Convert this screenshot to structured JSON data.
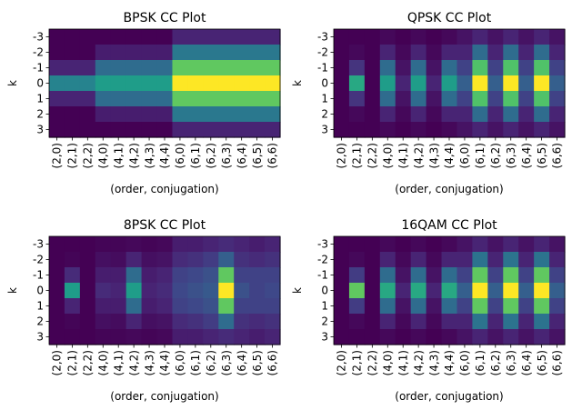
{
  "figure": {
    "colormap": [
      "#440154",
      "#482878",
      "#3e4989",
      "#31688e",
      "#26828e",
      "#1f9e89",
      "#35b779",
      "#6ece58",
      "#b5de2b",
      "#fde725"
    ]
  },
  "chart_data": [
    {
      "type": "heatmap",
      "title": "BPSK CC Plot",
      "xlabel": "(order, conjugation)",
      "ylabel": "k",
      "x": [
        "(2,0)",
        "(2,1)",
        "(2,2)",
        "(4,0)",
        "(4,1)",
        "(4,2)",
        "(4,3)",
        "(4,4)",
        "(6,0)",
        "(6,1)",
        "(6,2)",
        "(6,3)",
        "(6,4)",
        "(6,5)",
        "(6,6)"
      ],
      "y": [
        "-3",
        "-2",
        "-1",
        "0",
        "1",
        "2",
        "3"
      ],
      "grid": false,
      "values": [
        [
          0.0,
          0.0,
          0.0,
          0.0,
          0.0,
          0.0,
          0.0,
          0.0,
          0.1,
          0.1,
          0.1,
          0.1,
          0.1,
          0.1,
          0.1
        ],
        [
          0.0,
          0.0,
          0.0,
          0.08,
          0.08,
          0.08,
          0.08,
          0.08,
          0.4,
          0.4,
          0.4,
          0.4,
          0.4,
          0.4,
          0.4
        ],
        [
          0.1,
          0.1,
          0.1,
          0.35,
          0.35,
          0.35,
          0.35,
          0.35,
          0.75,
          0.75,
          0.75,
          0.75,
          0.75,
          0.75,
          0.75
        ],
        [
          0.45,
          0.45,
          0.45,
          0.55,
          0.55,
          0.55,
          0.55,
          0.55,
          1.0,
          1.0,
          1.0,
          1.0,
          1.0,
          1.0,
          1.0
        ],
        [
          0.1,
          0.1,
          0.1,
          0.35,
          0.35,
          0.35,
          0.35,
          0.35,
          0.75,
          0.75,
          0.75,
          0.75,
          0.75,
          0.75,
          0.75
        ],
        [
          0.0,
          0.0,
          0.0,
          0.08,
          0.08,
          0.08,
          0.08,
          0.08,
          0.4,
          0.4,
          0.4,
          0.4,
          0.4,
          0.4,
          0.4
        ],
        [
          0.0,
          0.0,
          0.0,
          0.0,
          0.0,
          0.0,
          0.0,
          0.0,
          0.1,
          0.1,
          0.1,
          0.1,
          0.1,
          0.1,
          0.1
        ]
      ]
    },
    {
      "type": "heatmap",
      "title": "QPSK CC Plot",
      "xlabel": "(order, conjugation)",
      "ylabel": "k",
      "x": [
        "(2,0)",
        "(2,1)",
        "(2,2)",
        "(4,0)",
        "(4,1)",
        "(4,2)",
        "(4,3)",
        "(4,4)",
        "(6,0)",
        "(6,1)",
        "(6,2)",
        "(6,3)",
        "(6,4)",
        "(6,5)",
        "(6,6)"
      ],
      "y": [
        "-3",
        "-2",
        "-1",
        "0",
        "1",
        "2",
        "3"
      ],
      "grid": false,
      "values": [
        [
          0.0,
          0.0,
          0.0,
          0.02,
          0.0,
          0.02,
          0.0,
          0.02,
          0.05,
          0.1,
          0.05,
          0.1,
          0.05,
          0.1,
          0.05
        ],
        [
          0.0,
          0.02,
          0.0,
          0.1,
          0.02,
          0.1,
          0.02,
          0.1,
          0.1,
          0.35,
          0.1,
          0.35,
          0.1,
          0.35,
          0.1
        ],
        [
          0.0,
          0.15,
          0.0,
          0.35,
          0.05,
          0.35,
          0.05,
          0.35,
          0.2,
          0.72,
          0.2,
          0.72,
          0.2,
          0.72,
          0.2
        ],
        [
          0.0,
          0.6,
          0.0,
          0.55,
          0.1,
          0.55,
          0.1,
          0.55,
          0.3,
          1.0,
          0.3,
          1.0,
          0.3,
          1.0,
          0.3
        ],
        [
          0.0,
          0.15,
          0.0,
          0.35,
          0.05,
          0.35,
          0.05,
          0.35,
          0.2,
          0.72,
          0.2,
          0.72,
          0.2,
          0.72,
          0.2
        ],
        [
          0.0,
          0.02,
          0.0,
          0.1,
          0.02,
          0.1,
          0.02,
          0.1,
          0.1,
          0.35,
          0.1,
          0.35,
          0.1,
          0.35,
          0.1
        ],
        [
          0.0,
          0.0,
          0.0,
          0.02,
          0.0,
          0.02,
          0.0,
          0.02,
          0.05,
          0.1,
          0.05,
          0.1,
          0.05,
          0.1,
          0.05
        ]
      ]
    },
    {
      "type": "heatmap",
      "title": "8PSK CC Plot",
      "xlabel": "(order, conjugation)",
      "ylabel": "k",
      "x": [
        "(2,0)",
        "(2,1)",
        "(2,2)",
        "(4,0)",
        "(4,1)",
        "(4,2)",
        "(4,3)",
        "(4,4)",
        "(6,0)",
        "(6,1)",
        "(6,2)",
        "(6,3)",
        "(6,4)",
        "(6,5)",
        "(6,6)"
      ],
      "y": [
        "-3",
        "-2",
        "-1",
        "0",
        "1",
        "2",
        "3"
      ],
      "grid": false,
      "values": [
        [
          0.0,
          0.0,
          0.0,
          0.01,
          0.01,
          0.02,
          0.01,
          0.02,
          0.08,
          0.08,
          0.1,
          0.12,
          0.1,
          0.08,
          0.1
        ],
        [
          0.0,
          0.01,
          0.0,
          0.04,
          0.03,
          0.1,
          0.04,
          0.05,
          0.12,
          0.14,
          0.18,
          0.3,
          0.14,
          0.12,
          0.14
        ],
        [
          0.0,
          0.12,
          0.0,
          0.08,
          0.08,
          0.35,
          0.08,
          0.1,
          0.2,
          0.22,
          0.25,
          0.75,
          0.2,
          0.2,
          0.2
        ],
        [
          0.0,
          0.55,
          0.0,
          0.12,
          0.1,
          0.55,
          0.1,
          0.12,
          0.22,
          0.25,
          0.28,
          1.0,
          0.25,
          0.2,
          0.22
        ],
        [
          0.0,
          0.1,
          0.0,
          0.08,
          0.08,
          0.35,
          0.08,
          0.1,
          0.2,
          0.22,
          0.25,
          0.75,
          0.2,
          0.2,
          0.2
        ],
        [
          0.0,
          0.01,
          0.0,
          0.04,
          0.03,
          0.1,
          0.04,
          0.05,
          0.12,
          0.14,
          0.18,
          0.35,
          0.14,
          0.12,
          0.14
        ],
        [
          0.0,
          0.0,
          0.0,
          0.01,
          0.01,
          0.02,
          0.01,
          0.02,
          0.08,
          0.08,
          0.1,
          0.12,
          0.1,
          0.08,
          0.1
        ]
      ]
    },
    {
      "type": "heatmap",
      "title": "16QAM CC Plot",
      "xlabel": "(order, conjugation)",
      "ylabel": "k",
      "x": [
        "(2,0)",
        "(2,1)",
        "(2,2)",
        "(4,0)",
        "(4,1)",
        "(4,2)",
        "(4,3)",
        "(4,4)",
        "(6,0)",
        "(6,1)",
        "(6,2)",
        "(6,3)",
        "(6,4)",
        "(6,5)",
        "(6,6)"
      ],
      "y": [
        "-3",
        "-2",
        "-1",
        "0",
        "1",
        "2",
        "3"
      ],
      "grid": false,
      "values": [
        [
          0.0,
          0.0,
          0.0,
          0.02,
          0.0,
          0.02,
          0.0,
          0.02,
          0.05,
          0.1,
          0.05,
          0.1,
          0.05,
          0.1,
          0.05
        ],
        [
          0.0,
          0.02,
          0.0,
          0.1,
          0.02,
          0.1,
          0.02,
          0.1,
          0.1,
          0.38,
          0.1,
          0.38,
          0.1,
          0.38,
          0.1
        ],
        [
          0.0,
          0.18,
          0.0,
          0.35,
          0.05,
          0.35,
          0.05,
          0.35,
          0.2,
          0.75,
          0.2,
          0.75,
          0.2,
          0.75,
          0.2
        ],
        [
          0.0,
          0.75,
          0.0,
          0.6,
          0.1,
          0.6,
          0.1,
          0.6,
          0.3,
          1.0,
          0.3,
          1.0,
          0.3,
          1.0,
          0.3
        ],
        [
          0.0,
          0.18,
          0.0,
          0.35,
          0.05,
          0.35,
          0.05,
          0.35,
          0.2,
          0.75,
          0.2,
          0.75,
          0.2,
          0.75,
          0.2
        ],
        [
          0.0,
          0.02,
          0.0,
          0.1,
          0.02,
          0.1,
          0.02,
          0.1,
          0.1,
          0.38,
          0.1,
          0.38,
          0.1,
          0.38,
          0.1
        ],
        [
          0.0,
          0.0,
          0.0,
          0.02,
          0.0,
          0.02,
          0.0,
          0.02,
          0.05,
          0.1,
          0.05,
          0.1,
          0.05,
          0.1,
          0.05
        ]
      ]
    }
  ]
}
